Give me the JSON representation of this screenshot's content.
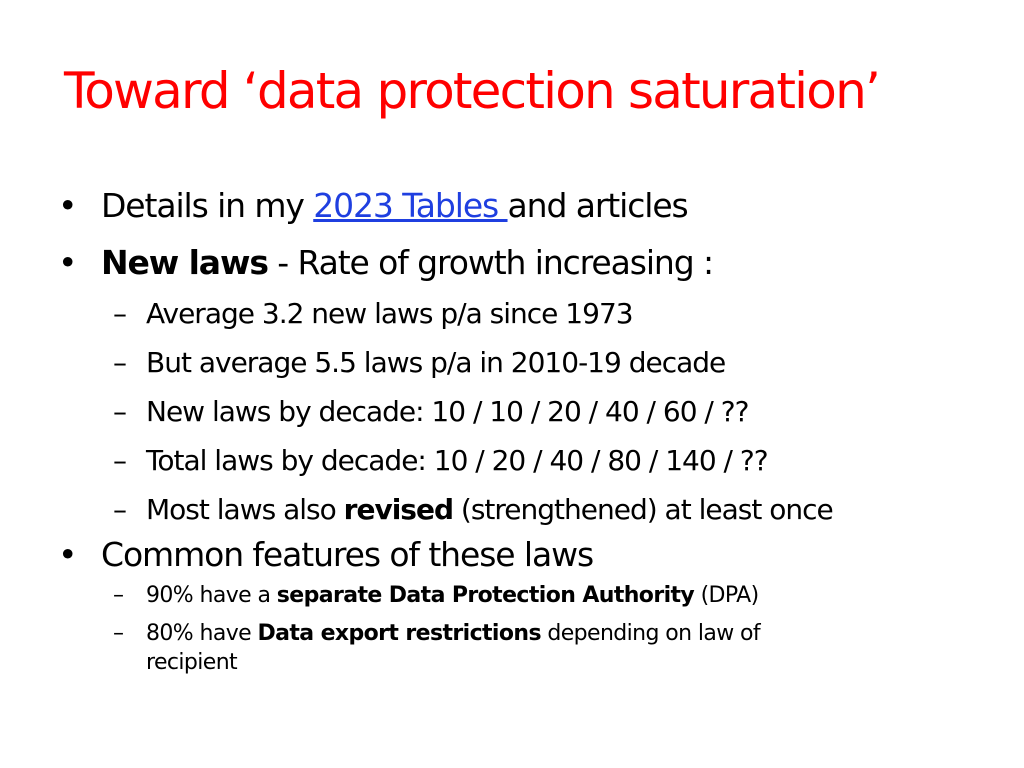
{
  "slide": {
    "title": "Toward ‘data protection saturation’",
    "bullet_char": "•",
    "dash_char": "–",
    "items": [
      {
        "text_before": "Details in my ",
        "link_text": "2023 Tables ",
        "text_after": "and articles"
      },
      {
        "bold": "New laws",
        "text": " - Rate of growth increasing :",
        "sub": [
          "Average 3.2 new laws p/a since 1973",
          "But average 5.5 laws p/a in 2010-19 decade",
          "New laws by decade: 10 / 10 / 20 / 40 / 60 / ??",
          "Total laws by decade: 10 / 20 / 40 / 80 / 140 / ??"
        ],
        "sub_last": {
          "before": "Most laws also ",
          "bold": "revised",
          "after": " (strengthened) at least once"
        }
      },
      {
        "text": "Common features of these laws",
        "sub": [
          {
            "before": "90% have a ",
            "bold": "separate Data Protection Authority",
            "after": " (DPA)"
          },
          {
            "before": "80% have ",
            "bold": "Data export restrictions",
            "after": " depending on law of",
            "line2": "recipient"
          }
        ]
      }
    ]
  },
  "colors": {
    "title": "#ff0000",
    "link": "#1f3fe0",
    "text": "#000000",
    "background": "#ffffff"
  }
}
